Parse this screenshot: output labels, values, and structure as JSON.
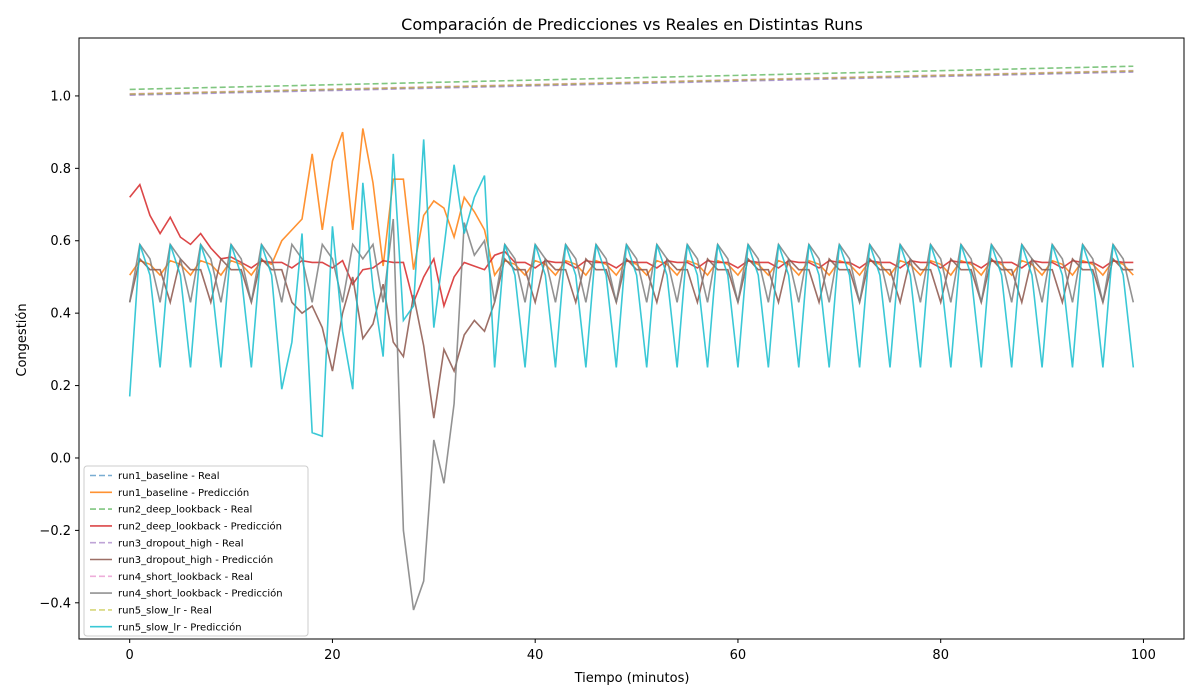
{
  "chart_data": {
    "type": "line",
    "title": "Comparación de Predicciones vs Reales en Distintas Runs",
    "xlabel": "Tiempo (minutos)",
    "ylabel": "Congestión",
    "xlim": [
      -5,
      104
    ],
    "ylim": [
      -0.5,
      1.16
    ],
    "xticks": [
      0,
      20,
      40,
      60,
      80,
      100
    ],
    "yticks": [
      -0.4,
      -0.2,
      0.0,
      0.2,
      0.4,
      0.6,
      0.8,
      1.0
    ],
    "xtick_labels": [
      "0",
      "20",
      "40",
      "60",
      "80",
      "100"
    ],
    "ytick_labels": [
      "−0.4",
      "−0.2",
      "0.0",
      "0.2",
      "0.4",
      "0.6",
      "0.8",
      "1.0"
    ],
    "grid": false,
    "legend_position": "lower-left",
    "series": [
      {
        "name": "run1_baseline - Real",
        "color": "#1f77b4",
        "style": "dashed",
        "gen": {
          "kind": "linear",
          "start": 1.004,
          "end": 1.068
        }
      },
      {
        "name": "run1_baseline - Predicción",
        "color": "#ff7f0e",
        "style": "solid",
        "gen": {
          "kind": "osc",
          "base": 0.525,
          "amp": 0.02,
          "period": 3,
          "anchors": [
            [
              15,
              0.6
            ],
            [
              16,
              0.63
            ],
            [
              17,
              0.66
            ],
            [
              18,
              0.84
            ],
            [
              19,
              0.63
            ],
            [
              20,
              0.82
            ],
            [
              21,
              0.9
            ],
            [
              22,
              0.63
            ],
            [
              23,
              0.91
            ],
            [
              24,
              0.76
            ],
            [
              25,
              0.53
            ],
            [
              26,
              0.77
            ],
            [
              27,
              0.77
            ],
            [
              28,
              0.52
            ],
            [
              29,
              0.67
            ],
            [
              30,
              0.71
            ],
            [
              31,
              0.69
            ],
            [
              32,
              0.61
            ],
            [
              33,
              0.72
            ],
            [
              34,
              0.68
            ],
            [
              35,
              0.63
            ]
          ]
        }
      },
      {
        "name": "run2_deep_lookback - Real",
        "color": "#2ca02c",
        "style": "dashed",
        "gen": {
          "kind": "linear",
          "start": 1.018,
          "end": 1.082
        }
      },
      {
        "name": "run2_deep_lookback - Predicción",
        "color": "#d62728",
        "style": "solid",
        "gen": {
          "kind": "osc",
          "base": 0.535,
          "amp": 0.01,
          "period": 4,
          "anchors": [
            [
              0,
              0.72
            ],
            [
              1,
              0.755
            ],
            [
              2,
              0.67
            ],
            [
              3,
              0.62
            ],
            [
              4,
              0.665
            ],
            [
              5,
              0.61
            ],
            [
              6,
              0.59
            ],
            [
              7,
              0.62
            ],
            [
              8,
              0.58
            ],
            [
              9,
              0.55
            ],
            [
              10,
              0.555
            ],
            [
              22,
              0.48
            ],
            [
              23,
              0.52
            ],
            [
              28,
              0.43
            ],
            [
              29,
              0.5
            ],
            [
              30,
              0.55
            ],
            [
              31,
              0.42
            ],
            [
              32,
              0.5
            ],
            [
              33,
              0.54
            ],
            [
              34,
              0.53
            ],
            [
              35,
              0.52
            ],
            [
              36,
              0.56
            ],
            [
              37,
              0.57
            ]
          ]
        }
      },
      {
        "name": "run3_dropout_high - Real",
        "color": "#9467bd",
        "style": "dashed",
        "gen": {
          "kind": "linear",
          "start": 1.002,
          "end": 1.066
        }
      },
      {
        "name": "run3_dropout_high - Predicción",
        "color": "#8c564b",
        "style": "solid",
        "gen": {
          "kind": "osc",
          "base": 0.49,
          "amp": 0.06,
          "period": 4,
          "anchors": [
            [
              17,
              0.4
            ],
            [
              18,
              0.42
            ],
            [
              19,
              0.36
            ],
            [
              20,
              0.24
            ],
            [
              21,
              0.4
            ],
            [
              22,
              0.5
            ],
            [
              23,
              0.33
            ],
            [
              24,
              0.37
            ],
            [
              25,
              0.48
            ],
            [
              26,
              0.32
            ],
            [
              27,
              0.28
            ],
            [
              28,
              0.45
            ],
            [
              29,
              0.31
            ],
            [
              30,
              0.11
            ],
            [
              31,
              0.3
            ],
            [
              32,
              0.24
            ],
            [
              33,
              0.34
            ],
            [
              34,
              0.38
            ],
            [
              35,
              0.35
            ]
          ]
        }
      },
      {
        "name": "run4_short_lookback - Real",
        "color": "#e377c2",
        "style": "dashed",
        "gen": {
          "kind": "linear",
          "start": 1.006,
          "end": 1.07
        }
      },
      {
        "name": "run4_short_lookback - Predicción",
        "color": "#7f7f7f",
        "style": "solid",
        "gen": {
          "kind": "osc",
          "base": 0.51,
          "amp": 0.08,
          "period": 3,
          "anchors": [
            [
              24,
              0.59
            ],
            [
              25,
              0.43
            ],
            [
              26,
              0.66
            ],
            [
              27,
              -0.2
            ],
            [
              28,
              -0.42
            ],
            [
              29,
              -0.34
            ],
            [
              30,
              0.05
            ],
            [
              31,
              -0.07
            ],
            [
              32,
              0.15
            ],
            [
              33,
              0.65
            ],
            [
              34,
              0.56
            ],
            [
              35,
              0.6
            ]
          ]
        }
      },
      {
        "name": "run5_slow_lr - Real",
        "color": "#bcbd22",
        "style": "dashed",
        "gen": {
          "kind": "linear",
          "start": 1.005,
          "end": 1.069
        }
      },
      {
        "name": "run5_slow_lr - Predicción",
        "color": "#17becf",
        "style": "solid",
        "gen": {
          "kind": "osc",
          "base": 0.42,
          "amp": 0.17,
          "period": 3,
          "anchors": [
            [
              0,
              0.17
            ],
            [
              15,
              0.19
            ],
            [
              16,
              0.32
            ],
            [
              17,
              0.62
            ],
            [
              18,
              0.07
            ],
            [
              19,
              0.06
            ],
            [
              20,
              0.64
            ],
            [
              21,
              0.35
            ],
            [
              22,
              0.19
            ],
            [
              23,
              0.76
            ],
            [
              24,
              0.47
            ],
            [
              25,
              0.28
            ],
            [
              26,
              0.84
            ],
            [
              27,
              0.38
            ],
            [
              28,
              0.42
            ],
            [
              29,
              0.88
            ],
            [
              30,
              0.36
            ],
            [
              31,
              0.58
            ],
            [
              32,
              0.81
            ],
            [
              33,
              0.62
            ],
            [
              34,
              0.72
            ],
            [
              35,
              0.78
            ],
            [
              99,
              0.25
            ]
          ]
        }
      }
    ]
  }
}
